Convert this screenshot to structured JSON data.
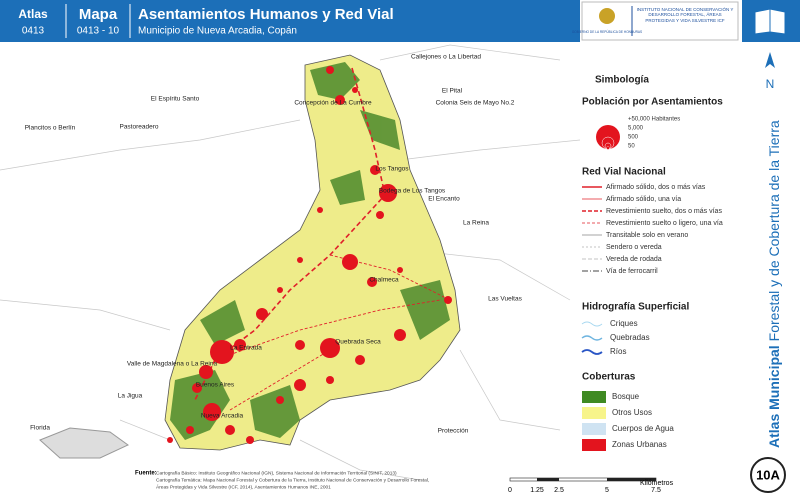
{
  "header": {
    "atlas_label": "Atlas",
    "atlas_code": "0413",
    "map_label": "Mapa",
    "map_code": "0413 - 10",
    "title": "Asentamientos Humanos y Red Vial",
    "subtitle": "Municipio de Nueva Arcadia, Copán",
    "government": "GOBIERNO DE LA REPÚBLICA DE HONDURAS",
    "institution": "INSTITUTO NACIONAL DE CONSERVACIÓN Y DESARROLLO FORESTAL, ÁREAS PROTEGIDAS Y VIDA SILVESTRE",
    "institution_code": "ICF"
  },
  "side": {
    "title_bold": "Atlas Municipal",
    "title_rest": "Forestal y de Cobertura de la Tierra",
    "north": "N",
    "badge": "10A"
  },
  "legend": {
    "title": "Simbología",
    "population": {
      "title": "Población por Asentamientos",
      "sizes": [
        "+50,000 Habitantes",
        "5,000",
        "500",
        "50"
      ]
    },
    "roads": {
      "title": "Red Vial Nacional",
      "items": [
        "Afirmado sólido, dos o más vías",
        "Afirmado sólido, una vía",
        "Revestimiento suelto, dos o más vías",
        "Revestimiento suelto o ligero, una vía",
        "Transitable solo en verano",
        "Sendero o vereda",
        "Vereda de rodada",
        "Vía de ferrocarril"
      ]
    },
    "hydrography": {
      "title": "Hidrografía Superficial",
      "items": [
        "Criques",
        "Quebradas",
        "Ríos"
      ]
    },
    "cover": {
      "title": "Coberturas",
      "items": [
        "Bosque",
        "Otros Usos",
        "Cuerpos de Agua",
        "Zonas Urbanas"
      ]
    }
  },
  "places": [
    "Callejones o La Libertad",
    "El Pital",
    "Colonia Seis de Mayo No.2",
    "El Espíritu Santo",
    "Concepción de La Cumbre",
    "Plancitos o Berlín",
    "Pastoreadero",
    "Los Tangos",
    "Bodega de Los Tangos",
    "El Encanto",
    "La Reina",
    "Chalmeca",
    "Las Vueltas",
    "Quebrada Seca",
    "La Entrada",
    "Valle de Magdalena o La Reina",
    "Buenos Aires",
    "Nueva Arcadia",
    "La Jigua",
    "Florida",
    "Protección"
  ],
  "scale": {
    "ticks": [
      "0",
      "1.25",
      "2.5",
      "5",
      "7.5"
    ],
    "unit": "Kilómetros"
  },
  "source": {
    "label": "Fuente:",
    "lines": [
      "Cartografía Básico: Instituto Geográfico Nacional (IGN), Sistema Nacional de Información Territorial (SINIT, 2013)",
      "Cartografía Temática: Mapa Nacional Forestal y Cobertura de la Tierra, Instituto Nacional de Conservación y Desarrollo Forestal,",
      "Áreas Protegidas y Vida Silvestre (ICF, 2014), Asentamientos Humanos INE, 2001"
    ]
  }
}
